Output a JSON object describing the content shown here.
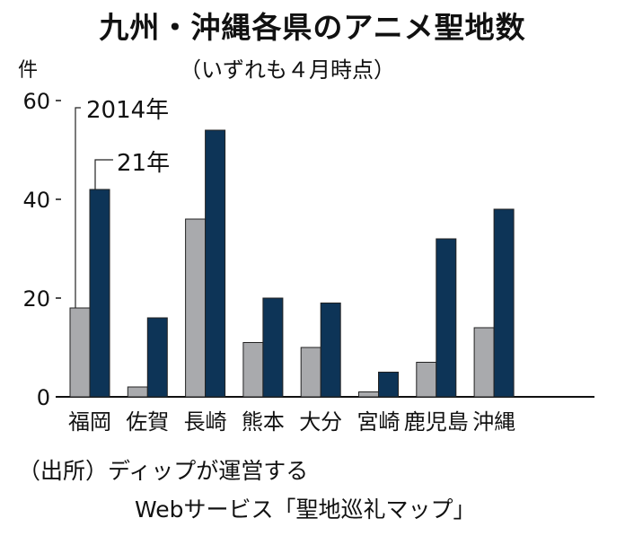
{
  "chart_data": {
    "type": "bar",
    "title": "九州・沖縄各県のアニメ聖地数",
    "subtitle": "（いずれも４月時点）",
    "ylabel": "件",
    "ylim": [
      0,
      60
    ],
    "yticks": [
      "0",
      "20",
      "40",
      "60"
    ],
    "categories": [
      "福岡",
      "佐賀",
      "長崎",
      "熊本",
      "大分",
      "宮崎",
      "鹿児島",
      "沖縄"
    ],
    "series": [
      {
        "name": "2014年",
        "color": "#a9aaad",
        "values": [
          18,
          2,
          36,
          11,
          10,
          1,
          7,
          14
        ]
      },
      {
        "name": "21年",
        "color": "#0d3457",
        "values": [
          42,
          16,
          54,
          20,
          19,
          5,
          32,
          38
        ]
      }
    ],
    "legend": "top-left, callout labels",
    "grid": false
  },
  "source": {
    "line1": "（出所）ディップが運営する",
    "line2": "Webサービス「聖地巡礼マップ」"
  }
}
